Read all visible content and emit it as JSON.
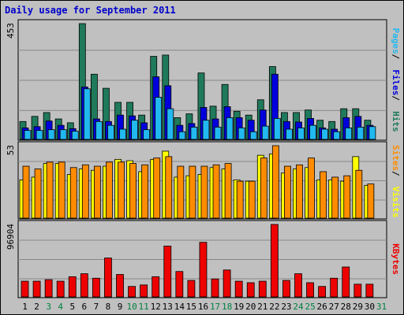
{
  "title": "Daily usage for September 2011",
  "chart_data": [
    {
      "type": "bar",
      "name": "pages-files-hits",
      "ymax_label": "453",
      "legend": [
        "Pages",
        "Files",
        "Hits"
      ],
      "colors": {
        "Hits": "#1f7a5c",
        "Files": "#0000dd",
        "Pages": "#22b8f0"
      },
      "categories": [
        "1",
        "2",
        "3",
        "4",
        "5",
        "6",
        "7",
        "8",
        "9",
        "10",
        "11",
        "12",
        "13",
        "14",
        "15",
        "16",
        "17",
        "18",
        "19",
        "20",
        "21",
        "22",
        "23",
        "24",
        "25",
        "26",
        "27",
        "28",
        "29",
        "30",
        "31"
      ],
      "series": [
        {
          "name": "Hits",
          "values": [
            70,
            90,
            105,
            80,
            65,
            453,
            255,
            200,
            145,
            145,
            95,
            325,
            330,
            85,
            100,
            260,
            130,
            215,
            110,
            95,
            155,
            285,
            105,
            105,
            115,
            75,
            70,
            120,
            120,
            75,
            0
          ]
        },
        {
          "name": "Files",
          "values": [
            45,
            50,
            72,
            55,
            42,
            205,
            80,
            70,
            95,
            92,
            65,
            245,
            210,
            55,
            62,
            125,
            80,
            128,
            85,
            75,
            115,
            255,
            70,
            68,
            82,
            45,
            40,
            85,
            90,
            55,
            0
          ]
        },
        {
          "name": "Pages",
          "values": [
            35,
            35,
            38,
            38,
            32,
            198,
            70,
            55,
            40,
            75,
            38,
            165,
            120,
            30,
            48,
            75,
            48,
            85,
            45,
            30,
            52,
            82,
            40,
            45,
            55,
            40,
            30,
            45,
            48,
            50,
            0
          ]
        }
      ],
      "ylim": [
        0,
        453
      ]
    },
    {
      "type": "bar",
      "name": "visits-sites",
      "ymax_label": "53",
      "legend": [
        "Sites",
        "Visits"
      ],
      "colors": {
        "Visits": "#ffff00",
        "Sites": "#ff8c00"
      },
      "categories": [
        "1",
        "2",
        "3",
        "4",
        "5",
        "6",
        "7",
        "8",
        "9",
        "10",
        "11",
        "12",
        "13",
        "14",
        "15",
        "16",
        "17",
        "18",
        "19",
        "20",
        "21",
        "22",
        "23",
        "24",
        "25",
        "26",
        "27",
        "28",
        "29",
        "30",
        "31"
      ],
      "series": [
        {
          "name": "Visits",
          "values": [
            28,
            30,
            40,
            40,
            32,
            36,
            35,
            38,
            43,
            42,
            34,
            43,
            49,
            30,
            31,
            32,
            37,
            36,
            28,
            27,
            46,
            47,
            33,
            36,
            37,
            28,
            28,
            27,
            45,
            24,
            0
          ]
        },
        {
          "name": "Sites",
          "values": [
            38,
            36,
            41,
            41,
            37,
            39,
            38,
            41,
            41,
            40,
            39,
            44,
            45,
            38,
            38,
            38,
            39,
            40,
            27,
            27,
            44,
            53,
            38,
            39,
            44,
            34,
            30,
            31,
            35,
            25,
            0
          ]
        }
      ],
      "ylim": [
        0,
        53
      ]
    },
    {
      "type": "bar",
      "name": "kbytes",
      "ymax_label": "96904",
      "legend": [
        "KBytes"
      ],
      "colors": {
        "KBytes": "#ee0000"
      },
      "categories": [
        "1",
        "2",
        "3",
        "4",
        "5",
        "6",
        "7",
        "8",
        "9",
        "10",
        "11",
        "12",
        "13",
        "14",
        "15",
        "16",
        "17",
        "18",
        "19",
        "20",
        "21",
        "22",
        "23",
        "24",
        "25",
        "26",
        "27",
        "28",
        "29",
        "30",
        "31"
      ],
      "series": [
        {
          "name": "KBytes",
          "values": [
            21000,
            21000,
            23000,
            21000,
            27000,
            31000,
            25000,
            52000,
            30000,
            14000,
            16000,
            27000,
            68000,
            34000,
            22000,
            73000,
            24000,
            36000,
            21000,
            19000,
            21000,
            96904,
            22000,
            31000,
            19000,
            14000,
            25000,
            40000,
            17000,
            17000,
            0
          ]
        }
      ],
      "ylim": [
        0,
        96904
      ]
    }
  ],
  "legend_colors": {
    "separator": "#000000"
  },
  "day_labels_weekend_color": "#008040",
  "weekend_days": [
    "3",
    "4",
    "10",
    "11",
    "17",
    "18",
    "24",
    "25",
    "31"
  ]
}
